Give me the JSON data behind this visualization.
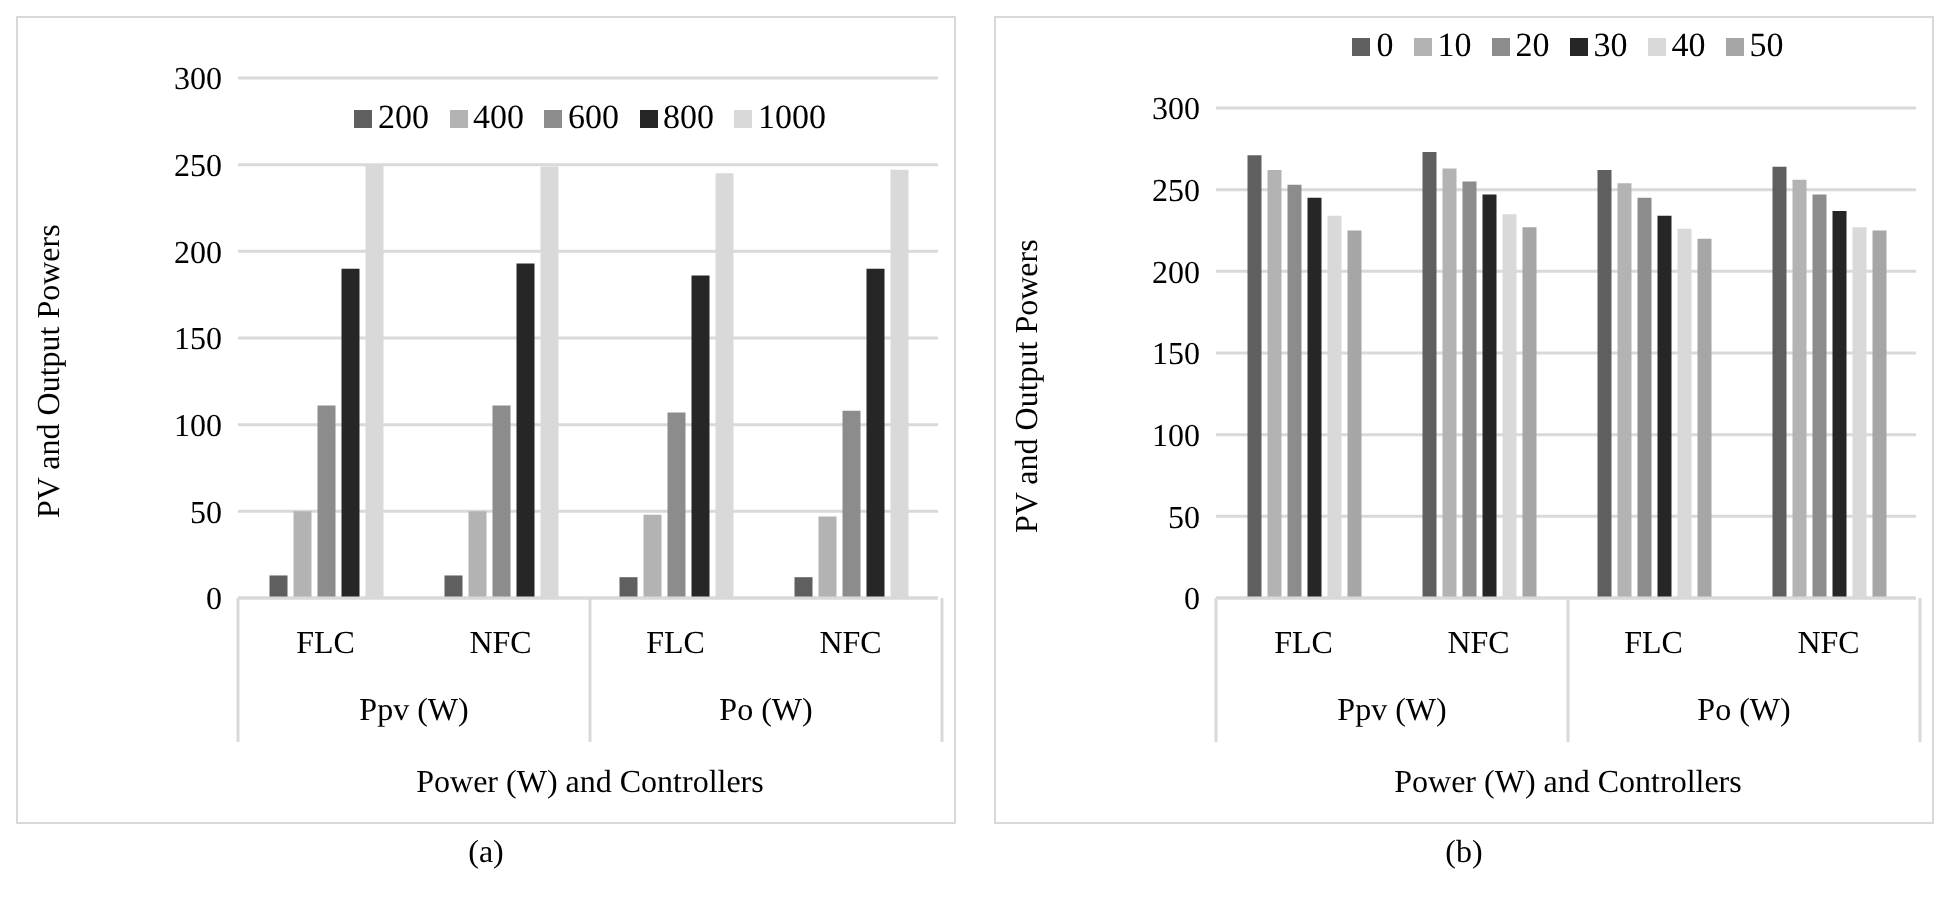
{
  "chart_data": [
    {
      "type": "bar",
      "xlabel": "Power (W) and Controllers",
      "ylabel": "PV and Output Powers",
      "categories": [
        "FLC",
        "NFC",
        "FLC",
        "NFC"
      ],
      "ylim": [
        0,
        300
      ],
      "yticks": [
        0,
        50,
        100,
        150,
        200,
        250,
        300
      ],
      "grid": "y",
      "legend": "top",
      "annotations": [
        "Ppv (W)",
        "Po (W)",
        "(a)"
      ],
      "series": [
        {
          "name": "200",
          "color": "#5f5f5f",
          "values": [
            13,
            13,
            12,
            12
          ]
        },
        {
          "name": "400",
          "color": "#b3b3b3",
          "values": [
            50,
            50,
            48,
            47
          ]
        },
        {
          "name": "600",
          "color": "#8c8c8c",
          "values": [
            111,
            111,
            107,
            108
          ]
        },
        {
          "name": "800",
          "color": "#262626",
          "values": [
            190,
            193,
            186,
            190
          ]
        },
        {
          "name": "1000",
          "color": "#d9d9d9",
          "values": [
            250,
            249,
            245,
            247
          ]
        }
      ]
    },
    {
      "type": "bar",
      "xlabel": "Power (W) and Controllers",
      "ylabel": "PV and Output Powers",
      "categories": [
        "FLC",
        "NFC",
        "FLC",
        "NFC"
      ],
      "ylim": [
        0,
        300
      ],
      "yticks": [
        0,
        50,
        100,
        150,
        200,
        250,
        300
      ],
      "grid": "y",
      "legend": "top",
      "annotations": [
        "Ppv (W)",
        "Po (W)",
        "(b)"
      ],
      "series": [
        {
          "name": "0",
          "color": "#5f5f5f",
          "values": [
            271,
            273,
            262,
            264
          ]
        },
        {
          "name": "10",
          "color": "#b3b3b3",
          "values": [
            262,
            263,
            254,
            256
          ]
        },
        {
          "name": "20",
          "color": "#8c8c8c",
          "values": [
            253,
            255,
            245,
            247
          ]
        },
        {
          "name": "30",
          "color": "#262626",
          "values": [
            245,
            247,
            234,
            237
          ]
        },
        {
          "name": "40",
          "color": "#d9d9d9",
          "values": [
            234,
            235,
            226,
            227
          ]
        },
        {
          "name": "50",
          "color": "#a6a6a6",
          "values": [
            225,
            227,
            220,
            225
          ]
        }
      ]
    }
  ]
}
